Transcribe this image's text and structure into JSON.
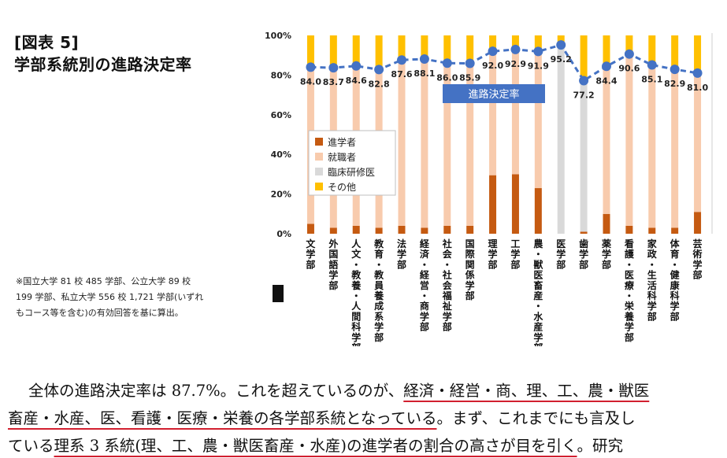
{
  "header": {
    "figure_label": "[図表 5]",
    "title": "学部系統別の進路決定率"
  },
  "note": "※国立大学 81 校 485 学部、公立大学 89 校 199 学部、私立大学 556 校 1,721 学部(いずれもコース等を含む)の有効回答を基に算出。",
  "body": {
    "line1_prefix": "全体の進路決定率は 87.7%。これを超えているのが、",
    "line1_underlined": "経済・経営・商、理、工、農・獣医",
    "line2_underlined": "畜産・水産、医、看護・医療・栄養の各学部系統となっている",
    "line2_suffix": "。まず、これまでにも言及し",
    "line3_prefix": "ている",
    "line3_underlined": "理系 3 系統(理、工、農・獣医畜産・水産)の進学者の割合の高さが目を引く",
    "line3_suffix": "。研究"
  },
  "chart_data": {
    "type": "bar",
    "stacked": true,
    "categories": [
      "文学部",
      "外国語学部",
      "人文・教養・人間科学部",
      "教育・教員養成系学部",
      "法学部",
      "経済・経営・商学部",
      "社会・社会福祉学部",
      "国際関係学部",
      "理学部",
      "工学部",
      "農・獣医畜産・水産学部",
      "医学部",
      "歯学部",
      "薬学部",
      "看護・医療・栄養学部",
      "家政・生活科学部",
      "体育・健康科学部",
      "芸術学部"
    ],
    "ylim": [
      0,
      100
    ],
    "yticks": [
      "0%",
      "20%",
      "40%",
      "60%",
      "80%",
      "100%"
    ],
    "series": [
      {
        "name": "進学者",
        "color": "#c55a11",
        "values": [
          5,
          3,
          4,
          3,
          4,
          3,
          4,
          4,
          29.5,
          30,
          23,
          0,
          1,
          10,
          4,
          3,
          3,
          11
        ]
      },
      {
        "name": "就職者",
        "color": "#f8cbad",
        "values": [
          79,
          80.7,
          80.6,
          79.8,
          83.6,
          85.1,
          82,
          81.9,
          62.5,
          62.9,
          68.9,
          0,
          0,
          74.4,
          86.6,
          82.1,
          79.9,
          70
        ]
      },
      {
        "name": "臨床研修医",
        "color": "#d9d9d9",
        "values": [
          0,
          0,
          0,
          0,
          0,
          0,
          0,
          0,
          0,
          0,
          0,
          95.2,
          76.2,
          0,
          0,
          0,
          0,
          0
        ]
      },
      {
        "name": "その他",
        "color": "#ffc000",
        "values": [
          16,
          16.3,
          15.4,
          17.2,
          12.4,
          11.9,
          14,
          14.1,
          8,
          7.1,
          8.1,
          4.8,
          22.8,
          15.6,
          9.4,
          14.9,
          17.1,
          19
        ]
      }
    ],
    "line": {
      "name": "進路決定率",
      "color": "#4472c4",
      "values": [
        84.0,
        83.7,
        84.6,
        82.8,
        87.6,
        88.1,
        86.0,
        85.9,
        92.0,
        92.9,
        91.9,
        95.2,
        77.2,
        84.4,
        90.6,
        85.1,
        82.9,
        81.0
      ],
      "labels": [
        "84.0",
        "83.7",
        "84.6",
        "82.8",
        "87.6",
        "88.1",
        "86.0",
        "85.9",
        "92.0",
        "92.9",
        "91.9",
        "95.2",
        "77.2",
        "84.4",
        "90.6",
        "85.1",
        "82.9",
        "81.0"
      ]
    },
    "legend_position": "inside-left"
  }
}
